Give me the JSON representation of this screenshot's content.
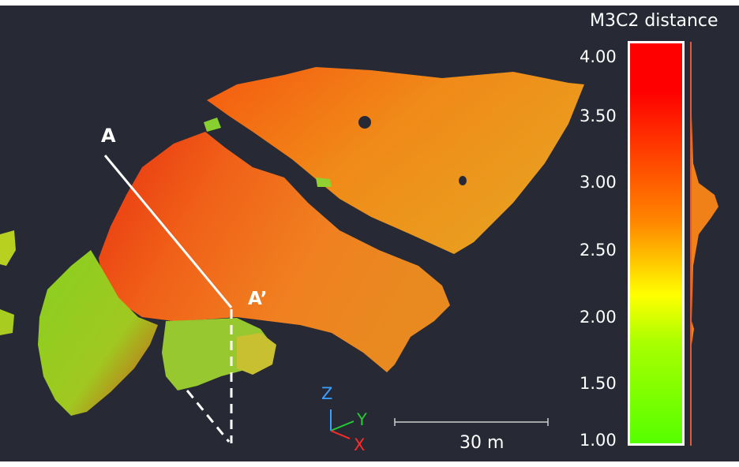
{
  "colorbar": {
    "title": "M3C2 distance",
    "ticks": [
      "4.00",
      "3.50",
      "3.00",
      "2.50",
      "2.00",
      "1.50",
      "1.00"
    ],
    "min": 1.0,
    "max": 4.0,
    "colors": {
      "high": "#ff0000",
      "mid_high": "#ff8800",
      "mid": "#ffff00",
      "mid_low": "#a8ff00",
      "low": "#55ff00"
    }
  },
  "section_line": {
    "start_label": "A",
    "end_label": "A’"
  },
  "scale_bar": {
    "label": "30 m"
  },
  "axes": {
    "z": "Z",
    "y": "Y",
    "x": "X"
  }
}
